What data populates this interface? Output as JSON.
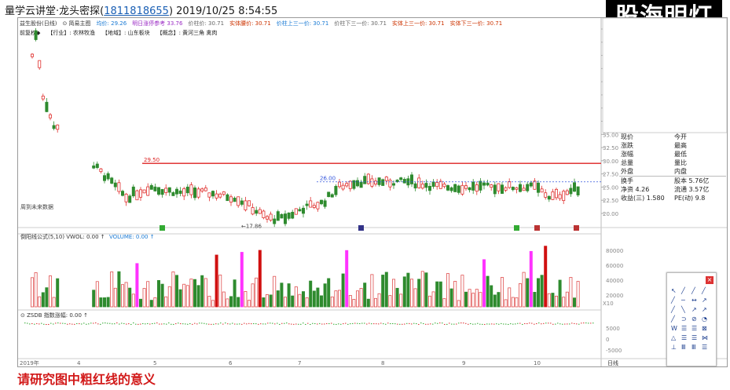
{
  "header": {
    "prefix": "量学云讲堂·龙头密探(",
    "phone": "1811818655",
    "suffix": ")  2019/10/25 8:54:55"
  },
  "watermark": "股海明灯",
  "chart_top": {
    "labels": [
      "益生股份(日线)",
      "⊙ 简易主图",
      "均价: 29.26",
      "明日涨停参考 33.76",
      "价柱价: 30.71",
      "实体腰价: 30.71",
      "价柱上三一价: 30.71",
      "价柱下三一价: 30.71",
      "实体上三一价: 30.71",
      "实体下三一价: 30.71"
    ],
    "label_colors": [
      "#333",
      "#333",
      "#1a7ad4",
      "#9b2bc4",
      "#666",
      "#cc3300",
      "#1a7ad4",
      "#666",
      "#cc3300",
      "#cc3300"
    ],
    "info": [
      "前复权◆",
      "【行业】: 农林牧渔",
      "【地域】: 山东板块",
      "【概念】: 黄河三角 禽肉"
    ],
    "peak_label": "29.50",
    "dash_label": "26.00",
    "low_label": "←17.86",
    "future_text": "周到未来数据",
    "y_ticks": [
      "55.00",
      "52.50",
      "50.00",
      "47.50",
      "45.00",
      "42.50",
      "40.00",
      "37.50",
      "35.00",
      "32.50",
      "30.00",
      "27.50",
      "25.00",
      "22.50",
      "20.00"
    ],
    "sub_label": "股东数据"
  },
  "vol": {
    "label": "倒阳线公式(5,10)  VWOL: 0.00  ↑",
    "label2": "VOLUME: 0.00  ↑",
    "y_ticks": [
      "80000",
      "60000",
      "40000",
      "20000"
    ],
    "x10": "X10"
  },
  "zsdb": {
    "label": "⊙ ZSDB  指数涨幅: 0.00  ↑",
    "y_ticks": [
      "5000",
      "0",
      "-5000"
    ]
  },
  "x_axis": {
    "labels": [
      "2019年",
      "4",
      "5",
      "6",
      "7",
      "8",
      "9",
      "10"
    ],
    "right": "日线"
  },
  "sidebar": {
    "rows": [
      [
        "现价",
        "今开"
      ],
      [
        "涨跌",
        "最高"
      ],
      [
        "涨幅",
        "最低"
      ],
      [
        "总量",
        "量比"
      ],
      [
        "外盘",
        "内盘"
      ],
      [
        "换手",
        "股本 5.76亿"
      ],
      [
        "净资 4.26",
        "流通 3.57亿"
      ],
      [
        "收益(三) 1.580",
        "PE(动) 9.8"
      ]
    ],
    "title": "益生股份"
  },
  "toolbox": {
    "icons": [
      "↖",
      "╱",
      "╱",
      "╱",
      "╱",
      "─",
      "↔",
      "↗",
      "╱",
      "╲",
      "↗",
      "↗",
      "╱",
      "⊃",
      "⊘",
      "◔",
      "W",
      "☰",
      "☰",
      "⊠",
      "△",
      "☰",
      "☰",
      "⋈",
      "⊥",
      "Ⅲ",
      "Ⅲ",
      "☰"
    ]
  },
  "question": "请研究图中粗红线的意义",
  "chart_data": {
    "type": "candlestick",
    "price_range": [
      17.0,
      56.0
    ],
    "resistance_line": 29.5,
    "dashed_line": 26.0,
    "low_point": 17.86
  }
}
